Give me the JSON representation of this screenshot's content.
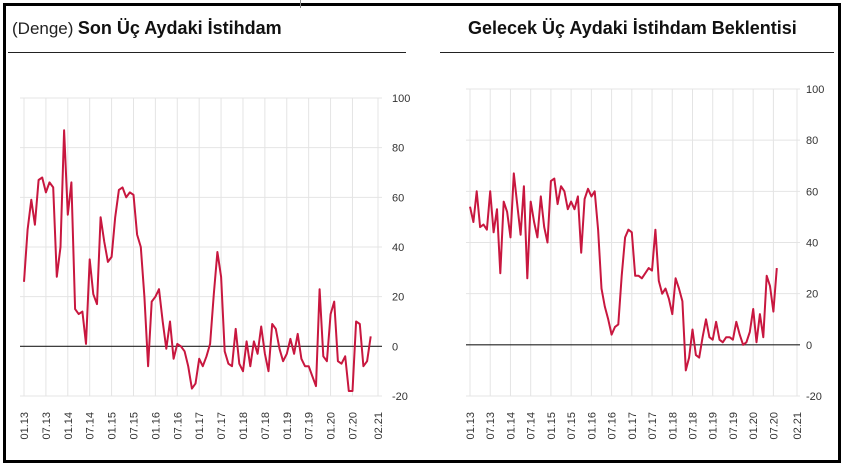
{
  "panels": {
    "left": {
      "prefix": "(Denge)",
      "title": "Son Üç Aydaki İstihdam"
    },
    "right": {
      "prefix": "",
      "title": "Gelecek Üç Aydaki İstihdam Beklentisi"
    }
  },
  "chart_data": [
    {
      "type": "line",
      "title": "Son Üç Aydaki İstihdam",
      "subtitle": "(Denge)",
      "color": "#c8173f",
      "ylim": [
        -20,
        100
      ],
      "yticks": [
        "100",
        "80",
        "60",
        "40",
        "20",
        "0",
        "-20"
      ],
      "xticks": [
        "01.13",
        "07.13",
        "01.14",
        "07.14",
        "01.15",
        "07.15",
        "01.16",
        "07.16",
        "01.17",
        "07.17",
        "01.18",
        "07.18",
        "01.19",
        "07.19",
        "01.20",
        "07.20",
        "02.21"
      ],
      "grid": true,
      "x_start": "2013-01",
      "series": [
        {
          "values": [
            26,
            47,
            59,
            49,
            67,
            68,
            62,
            66,
            64,
            28,
            40,
            87,
            53,
            66,
            15,
            13,
            14,
            1,
            35,
            21,
            17,
            52,
            42,
            34,
            36,
            52,
            63,
            64,
            60,
            62,
            61,
            45,
            40,
            20,
            -8,
            18,
            20,
            23,
            10,
            -1,
            10,
            -5,
            1,
            0,
            -2,
            -8,
            -17,
            -15,
            -5,
            -8,
            -4,
            1,
            21,
            38,
            28,
            -2,
            -7,
            -8,
            7,
            -7,
            -10,
            2,
            -8,
            2,
            -3,
            8,
            -3,
            -10,
            9,
            7,
            -1,
            -6,
            -3,
            3,
            -3,
            5,
            -5,
            -8,
            -8,
            -12,
            -16,
            23,
            -4,
            -6,
            13,
            18,
            -6,
            -7,
            -4,
            -18,
            -18,
            10,
            9,
            -8,
            -6,
            4
          ]
        }
      ]
    },
    {
      "type": "line",
      "title": "Gelecek Üç Aydaki İstihdam Beklentisi",
      "color": "#c8173f",
      "ylim": [
        -20,
        100
      ],
      "yticks": [
        "100",
        "80",
        "60",
        "40",
        "20",
        "0",
        "-20"
      ],
      "xticks": [
        "01.13",
        "07.13",
        "01.14",
        "07.14",
        "01.15",
        "07.15",
        "01.16",
        "07.16",
        "01.17",
        "07.17",
        "01.18",
        "07.18",
        "01.19",
        "07.19",
        "01.20",
        "07.20",
        "02.21"
      ],
      "grid": true,
      "x_start": "2013-01",
      "series": [
        {
          "values": [
            54,
            48,
            60,
            46,
            47,
            45,
            60,
            44,
            53,
            28,
            56,
            52,
            42,
            67,
            55,
            43,
            62,
            26,
            56,
            48,
            42,
            58,
            46,
            40,
            64,
            65,
            55,
            62,
            60,
            53,
            56,
            53,
            58,
            36,
            57,
            61,
            58,
            60,
            45,
            22,
            15,
            10,
            4,
            7,
            8,
            27,
            42,
            45,
            44,
            27,
            27,
            26,
            28,
            30,
            29,
            45,
            25,
            20,
            22,
            18,
            12,
            26,
            22,
            17,
            -10,
            -5,
            6,
            -4,
            -5,
            3,
            10,
            3,
            2,
            9,
            2,
            1,
            3,
            3,
            2,
            9,
            4,
            0,
            1,
            5,
            14,
            1,
            12,
            3,
            27,
            23,
            13,
            30
          ]
        }
      ]
    }
  ]
}
